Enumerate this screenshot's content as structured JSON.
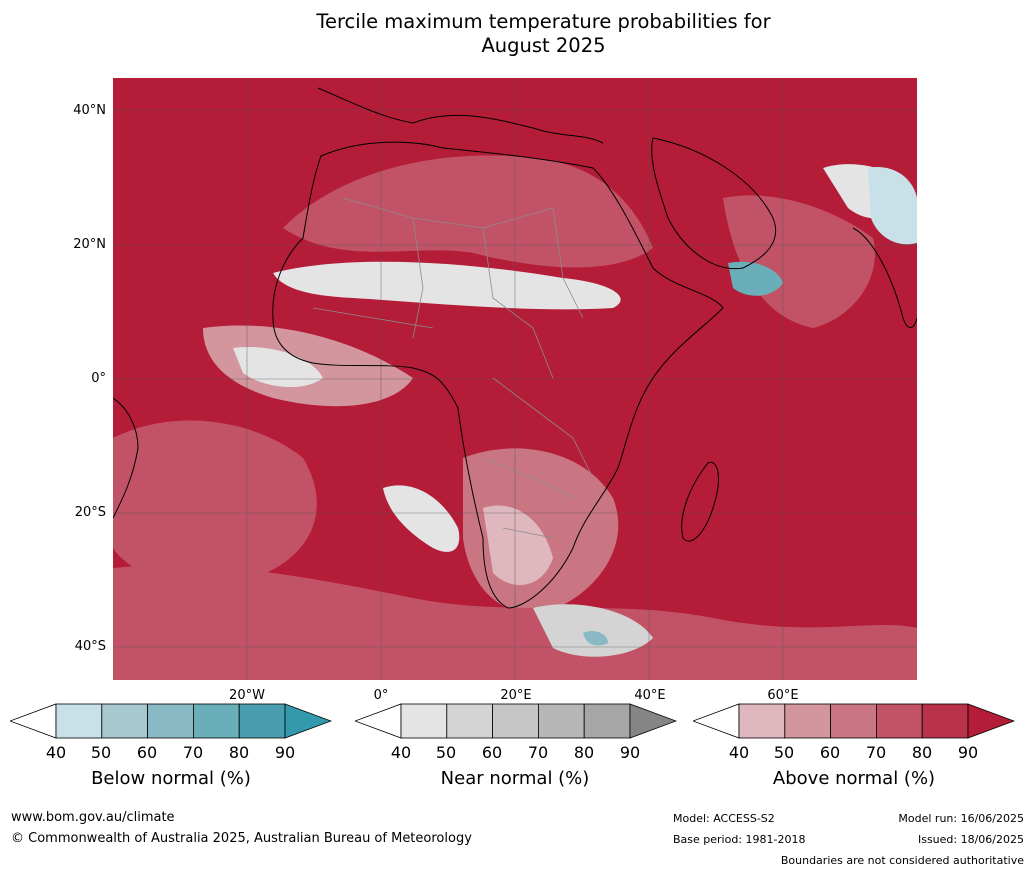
{
  "title_line1": "Tercile maximum temperature probabilities for",
  "title_line2": "August 2025",
  "map": {
    "region": "Africa",
    "lat_labels": [
      "40°N",
      "20°N",
      "0°",
      "20°S",
      "40°S"
    ],
    "lon_labels": [
      "20°W",
      "0°",
      "20°E",
      "40°E",
      "60°E"
    ],
    "dominant_category": "Above normal",
    "colors": {
      "ocean_land_base": "#b41c38",
      "coast": "#000000",
      "borders": "#8c8c8c",
      "grid": "#777777"
    }
  },
  "legend": {
    "ticks": [
      "40",
      "50",
      "60",
      "70",
      "80",
      "90"
    ],
    "below": {
      "label": "Below normal (%)",
      "colors": [
        "#ffffff",
        "#c8e1e8",
        "#a7c8cf",
        "#88b9c4",
        "#6aaeba",
        "#4a9dae",
        "#3399ad"
      ]
    },
    "near": {
      "label": "Near normal (%)",
      "colors": [
        "#ffffff",
        "#e4e4e4",
        "#d4d4d4",
        "#c6c6c6",
        "#b7b7b7",
        "#a6a6a6",
        "#858585"
      ]
    },
    "above": {
      "label": "Above normal (%)",
      "colors": [
        "#ffffff",
        "#dfb7be",
        "#d3959e",
        "#c97682",
        "#c25366",
        "#b8324a",
        "#b41c38"
      ]
    }
  },
  "footer": {
    "website": "www.bom.gov.au/climate",
    "copyright": "© Commonwealth of Australia 2025, Australian Bureau of Meteorology",
    "model": "Model: ACCESS-S2",
    "base_period": "Base period: 1981-2018",
    "model_run": "Model run: 16/06/2025",
    "issued": "Issued: 18/06/2025",
    "disclaimer": "Boundaries are not considered authoritative"
  }
}
